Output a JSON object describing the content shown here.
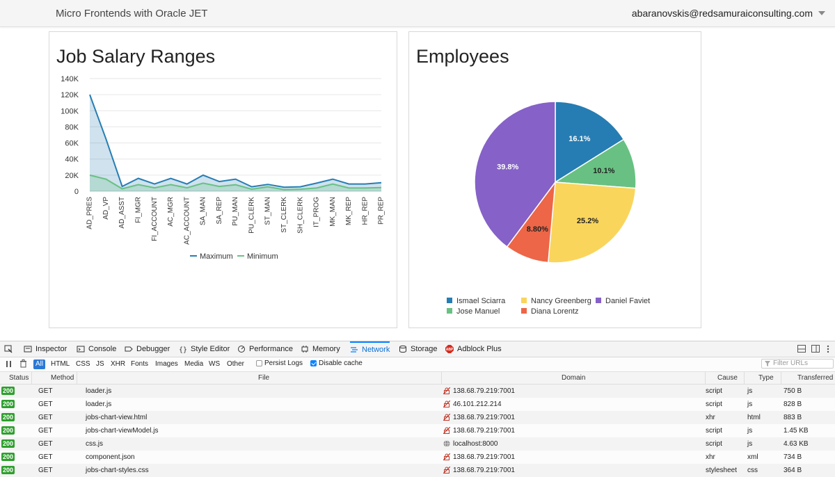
{
  "header": {
    "title": "Micro Frontends with Oracle JET",
    "user": "abaranovskis@redsamuraiconsulting.com"
  },
  "jobs_chart": {
    "title": "Job Salary Ranges"
  },
  "employees_chart": {
    "title": "Employees"
  },
  "chart_data": [
    {
      "type": "area",
      "title": "Job Salary Ranges",
      "categories": [
        "AD_PRES",
        "AD_VP",
        "AD_ASST",
        "FI_MGR",
        "FI_ACCOUNT",
        "AC_MGR",
        "AC_ACCOUNT",
        "SA_MAN",
        "SA_REP",
        "PU_MAN",
        "PU_CLERK",
        "ST_MAN",
        "ST_CLERK",
        "SH_CLERK",
        "IT_PROG",
        "MK_MAN",
        "MK_REP",
        "HR_REP",
        "PR_REP"
      ],
      "series": [
        {
          "name": "Maximum",
          "color": "#267db3",
          "values": [
            120000,
            65000,
            6000,
            16000,
            9000,
            16000,
            9000,
            20000,
            12000,
            15000,
            5500,
            8500,
            5000,
            5500,
            10000,
            15000,
            9000,
            9000,
            10500
          ]
        },
        {
          "name": "Minimum",
          "color": "#68c182",
          "values": [
            20000,
            15000,
            3000,
            8200,
            4200,
            8200,
            4200,
            10000,
            6000,
            8000,
            2500,
            5500,
            2000,
            2500,
            4000,
            9000,
            4000,
            4000,
            4500
          ]
        }
      ],
      "yticks": [
        "0",
        "20K",
        "40K",
        "60K",
        "80K",
        "100K",
        "120K",
        "140K"
      ],
      "ylim": [
        0,
        140000
      ],
      "grid": true,
      "legend_placement": "bottom"
    },
    {
      "type": "pie",
      "title": "Employees",
      "slices": [
        {
          "name": "Ismael Sciarra",
          "value": 16.1,
          "label": "16.1%",
          "color": "#267db3",
          "label_color": "#ffffff"
        },
        {
          "name": "Jose Manuel",
          "value": 10.1,
          "label": "10.1%",
          "color": "#68c182",
          "label_color": "#222222"
        },
        {
          "name": "Nancy Greenberg",
          "value": 25.2,
          "label": "25.2%",
          "color": "#fad55c",
          "label_color": "#222222"
        },
        {
          "name": "Diana Lorentz",
          "value": 8.8,
          "label": "8.80%",
          "color": "#ed6647",
          "label_color": "#222222"
        },
        {
          "name": "Daniel Faviet",
          "value": 39.8,
          "label": "39.8%",
          "color": "#8561c8",
          "label_color": "#ffffff"
        }
      ],
      "legend": [
        [
          "Ismael Sciarra",
          "Nancy Greenberg",
          "Daniel Faviet"
        ],
        [
          "Jose Manuel",
          "Diana Lorentz"
        ]
      ],
      "legend_placement": "bottom"
    }
  ],
  "devtools": {
    "tabs": [
      {
        "label": "Inspector",
        "icon": "inspector-icon"
      },
      {
        "label": "Console",
        "icon": "console-icon"
      },
      {
        "label": "Debugger",
        "icon": "debugger-icon"
      },
      {
        "label": "Style Editor",
        "icon": "style-editor-icon"
      },
      {
        "label": "Performance",
        "icon": "performance-icon"
      },
      {
        "label": "Memory",
        "icon": "memory-icon"
      },
      {
        "label": "Network",
        "icon": "network-icon",
        "active": true
      },
      {
        "label": "Storage",
        "icon": "storage-icon"
      },
      {
        "label": "Adblock Plus",
        "icon": "adblock-icon"
      }
    ],
    "filters": [
      "All",
      "HTML",
      "CSS",
      "JS",
      "XHR",
      "Fonts",
      "Images",
      "Media",
      "WS",
      "Other"
    ],
    "persist_logs": "Persist Logs",
    "disable_cache": "Disable cache",
    "filter_placeholder": "Filter URLs",
    "columns": [
      "Status",
      "Method",
      "File",
      "Domain",
      "Cause",
      "Type",
      "Transferred"
    ],
    "rows": [
      {
        "status": "200",
        "method": "GET",
        "file": "loader.js",
        "domain": "138.68.79.219:7001",
        "cause": "script",
        "type": "js",
        "transferred": "750 B",
        "insecure": true
      },
      {
        "status": "200",
        "method": "GET",
        "file": "loader.js",
        "domain": "46.101.212.214",
        "cause": "script",
        "type": "js",
        "transferred": "828 B",
        "insecure": true
      },
      {
        "status": "200",
        "method": "GET",
        "file": "jobs-chart-view.html",
        "domain": "138.68.79.219:7001",
        "cause": "xhr",
        "type": "html",
        "transferred": "883 B",
        "insecure": true
      },
      {
        "status": "200",
        "method": "GET",
        "file": "jobs-chart-viewModel.js",
        "domain": "138.68.79.219:7001",
        "cause": "script",
        "type": "js",
        "transferred": "1.45 KB",
        "insecure": true
      },
      {
        "status": "200",
        "method": "GET",
        "file": "css.js",
        "domain": "localhost:8000",
        "cause": "script",
        "type": "js",
        "transferred": "4.63 KB",
        "insecure": false
      },
      {
        "status": "200",
        "method": "GET",
        "file": "component.json",
        "domain": "138.68.79.219:7001",
        "cause": "xhr",
        "type": "xml",
        "transferred": "734 B",
        "insecure": true
      },
      {
        "status": "200",
        "method": "GET",
        "file": "jobs-chart-styles.css",
        "domain": "138.68.79.219:7001",
        "cause": "stylesheet",
        "type": "css",
        "transferred": "364 B",
        "insecure": true
      }
    ]
  }
}
